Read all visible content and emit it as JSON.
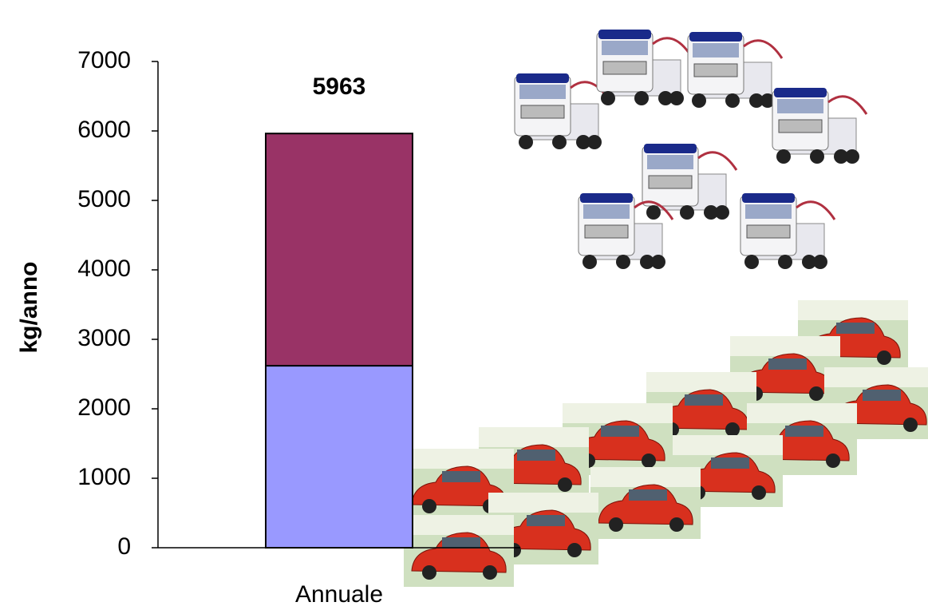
{
  "chart_data": {
    "type": "stacked_bar",
    "categories": [
      "Annuale"
    ],
    "series": [
      {
        "color": "#9999ff",
        "values": [
          2620
        ]
      },
      {
        "color": "#993366",
        "values": [
          3343
        ]
      }
    ],
    "totals": [
      5963
    ],
    "y_label": "kg/anno",
    "ylim": [
      0,
      7000
    ],
    "yticks": [
      0,
      1000,
      2000,
      3000,
      4000,
      5000,
      6000,
      7000
    ]
  }
}
